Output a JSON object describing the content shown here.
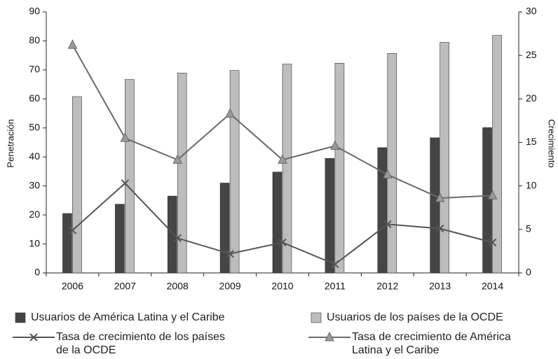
{
  "chart_data": {
    "type": "bar-line",
    "categories": [
      "2006",
      "2007",
      "2008",
      "2009",
      "2010",
      "2011",
      "2012",
      "2013",
      "2014"
    ],
    "ylabel": "Penetración",
    "y2label": "Crecimiento",
    "ylim": [
      0,
      90
    ],
    "yticks": [
      0,
      10,
      20,
      30,
      40,
      50,
      60,
      70,
      80,
      90
    ],
    "y2lim": [
      0,
      30
    ],
    "y2ticks": [
      0,
      5,
      10,
      15,
      20,
      25,
      30
    ],
    "series": [
      {
        "name": "Usuarios de América Latina y el Caribe",
        "type": "bar",
        "color": "#454545",
        "values": [
          20.5,
          23.7,
          26.5,
          31,
          34.8,
          39.5,
          43.2,
          46.6,
          50.1
        ]
      },
      {
        "name": "Usuarios de los países de la OCDE",
        "type": "bar",
        "color": "#bdbdbd",
        "values": [
          60.8,
          66.7,
          68.9,
          69.8,
          72,
          72.3,
          75.7,
          79.5,
          81.9
        ]
      },
      {
        "name": "Tasa de crecimiento de los países de la OCDE",
        "type": "line",
        "axis": "y2",
        "marker": "x",
        "color": "#555555",
        "values": [
          4.9,
          10.3,
          4.0,
          2.2,
          3.5,
          1.0,
          5.6,
          5.1,
          3.5
        ]
      },
      {
        "name": "Tasa de crecimiento de América Latina y el Caribe",
        "type": "line",
        "axis": "y2",
        "marker": "triangle",
        "color": "#6a6a6a",
        "values": [
          26.2,
          15.5,
          13.0,
          18.3,
          13.0,
          14.6,
          11.3,
          8.6,
          8.9
        ]
      }
    ]
  }
}
